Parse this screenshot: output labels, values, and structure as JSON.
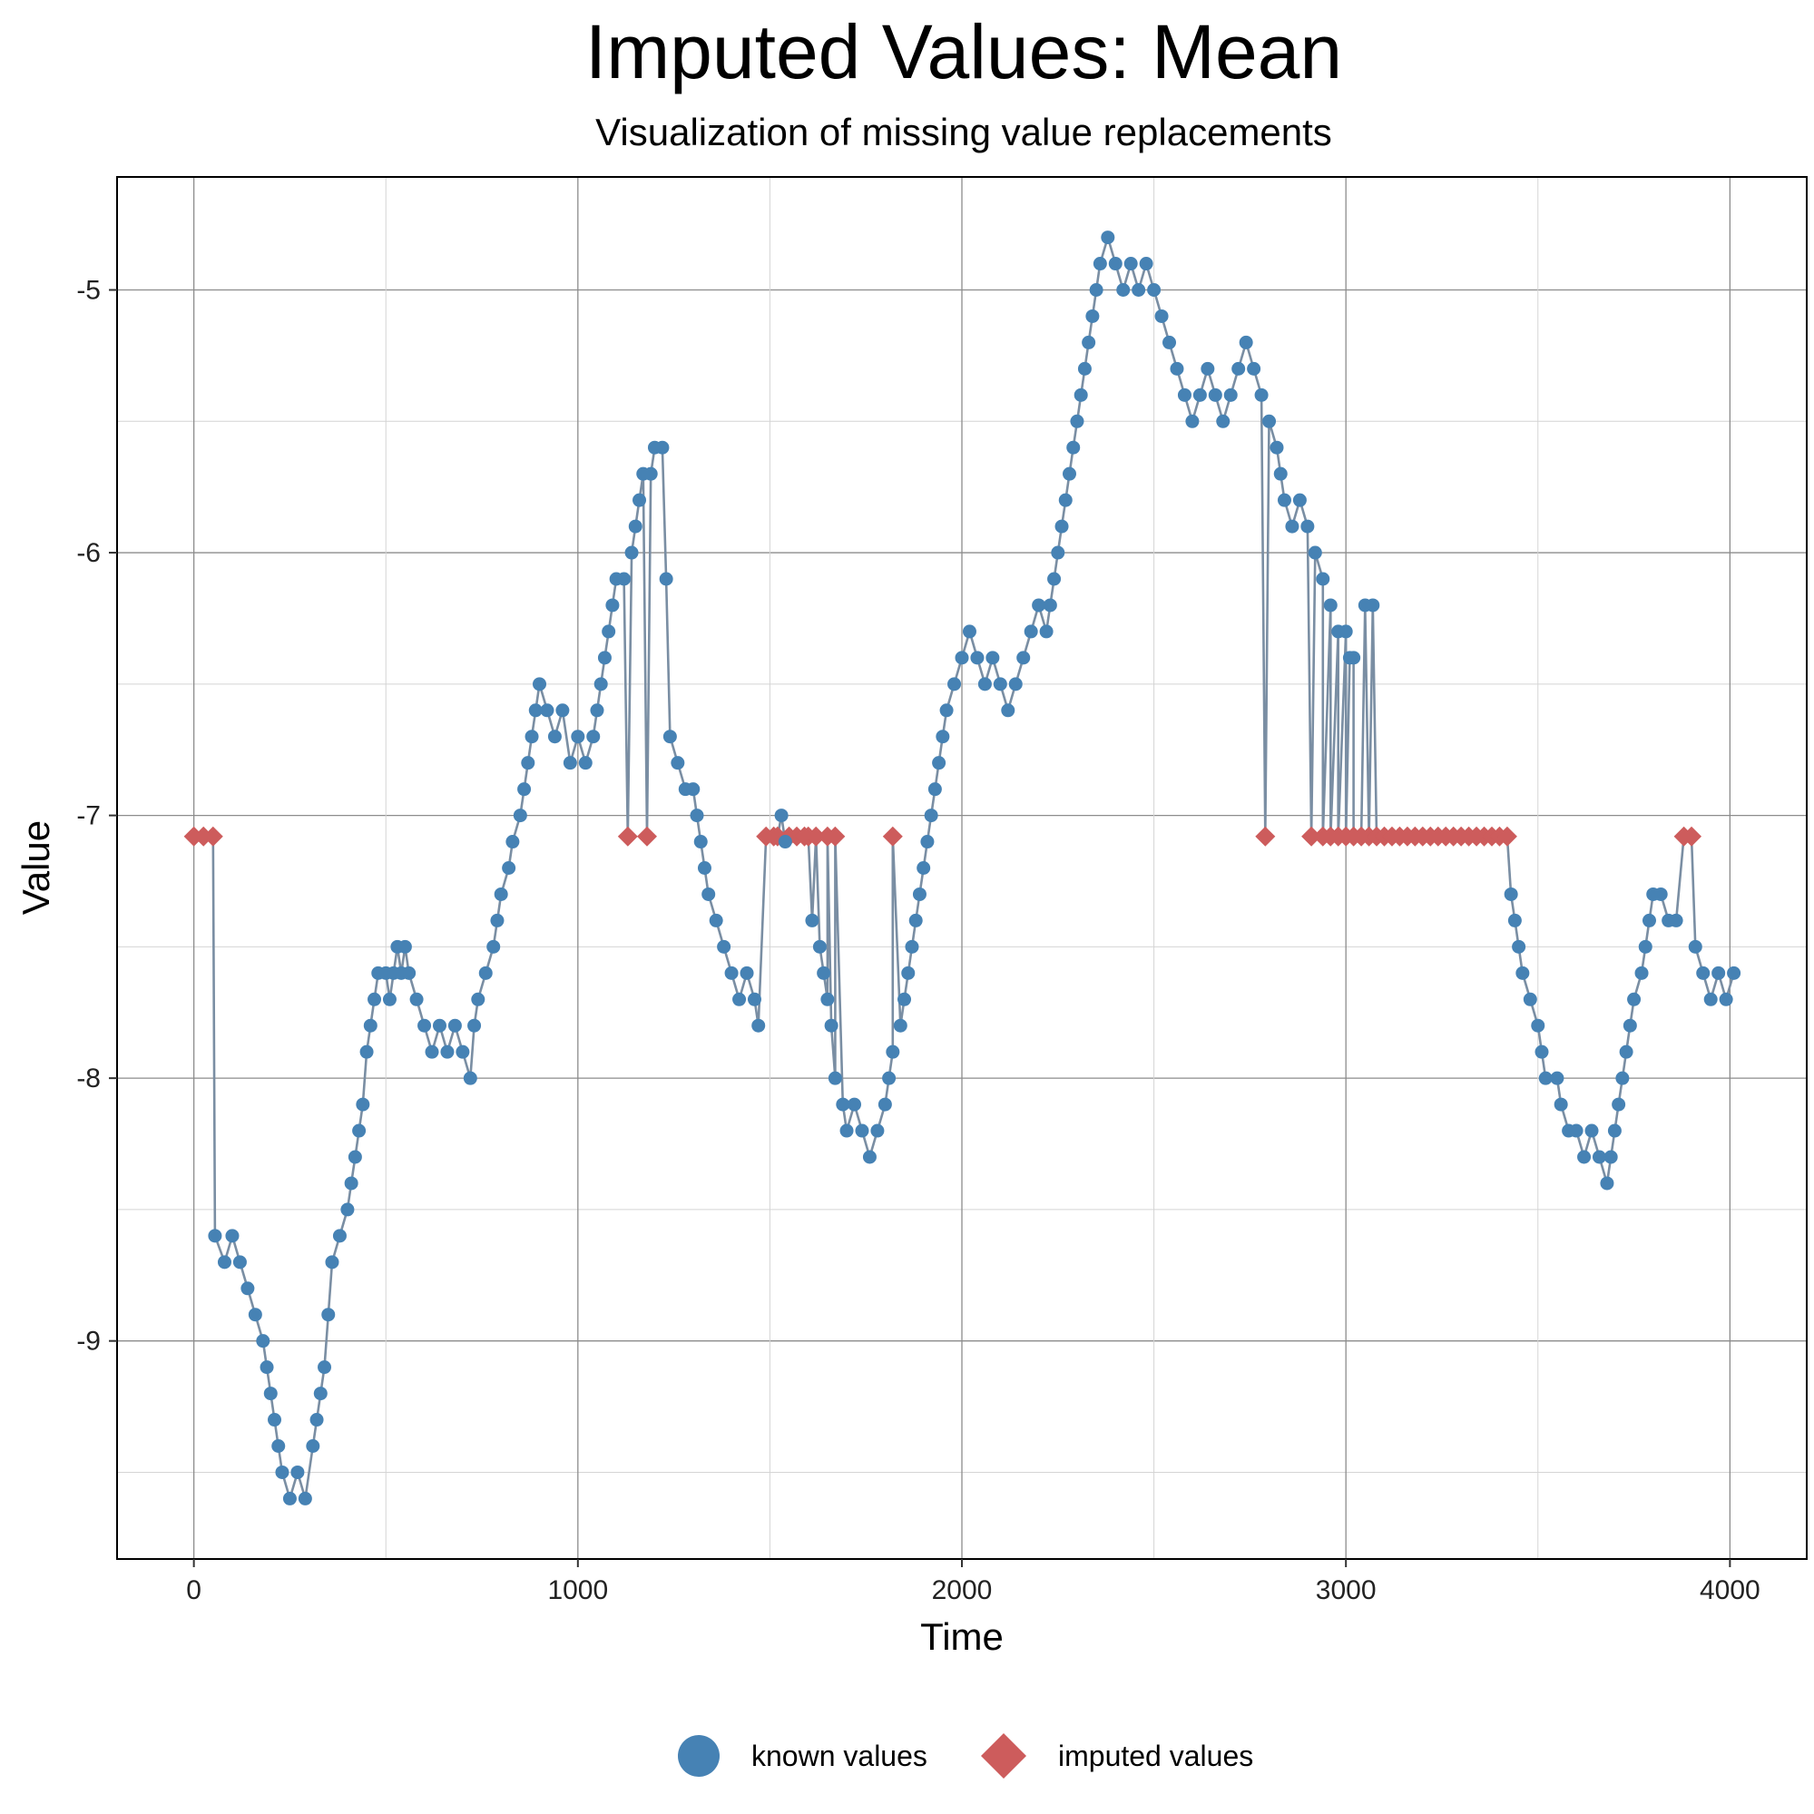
{
  "chart_data": {
    "type": "scatter",
    "title": "Imputed Values: Mean",
    "subtitle": "Visualization of missing value replacements",
    "xlabel": "Time",
    "ylabel": "Value",
    "xlim": [
      -200,
      4200
    ],
    "ylim": [
      -9.83,
      -4.57
    ],
    "x_ticks": [
      0,
      1000,
      2000,
      3000,
      4000
    ],
    "x_tick_labels": [
      "0",
      "1000",
      "2000",
      "3000",
      "4000"
    ],
    "y_ticks": [
      -9,
      -8,
      -7,
      -6,
      -5
    ],
    "y_tick_labels": [
      "-9",
      "-8",
      "-7",
      "-6",
      "-5"
    ],
    "grid": true,
    "legend_position": "bottom",
    "colors": {
      "known": "#4682b4",
      "imputed": "#cd5c5c",
      "line": "#7a8ea3"
    },
    "series": [
      {
        "name": "known values",
        "marker": "circle",
        "points": [
          [
            55,
            -8.6
          ],
          [
            80,
            -8.7
          ],
          [
            100,
            -8.6
          ],
          [
            120,
            -8.7
          ],
          [
            140,
            -8.8
          ],
          [
            160,
            -8.9
          ],
          [
            180,
            -9.0
          ],
          [
            190,
            -9.1
          ],
          [
            200,
            -9.2
          ],
          [
            210,
            -9.3
          ],
          [
            220,
            -9.4
          ],
          [
            230,
            -9.5
          ],
          [
            250,
            -9.6
          ],
          [
            270,
            -9.5
          ],
          [
            290,
            -9.6
          ],
          [
            310,
            -9.4
          ],
          [
            320,
            -9.3
          ],
          [
            330,
            -9.2
          ],
          [
            340,
            -9.1
          ],
          [
            350,
            -8.9
          ],
          [
            360,
            -8.7
          ],
          [
            380,
            -8.6
          ],
          [
            400,
            -8.5
          ],
          [
            410,
            -8.4
          ],
          [
            420,
            -8.3
          ],
          [
            430,
            -8.2
          ],
          [
            440,
            -8.1
          ],
          [
            450,
            -7.9
          ],
          [
            460,
            -7.8
          ],
          [
            470,
            -7.7
          ],
          [
            480,
            -7.6
          ],
          [
            500,
            -7.6
          ],
          [
            510,
            -7.7
          ],
          [
            520,
            -7.6
          ],
          [
            530,
            -7.5
          ],
          [
            540,
            -7.6
          ],
          [
            550,
            -7.5
          ],
          [
            560,
            -7.6
          ],
          [
            580,
            -7.7
          ],
          [
            600,
            -7.8
          ],
          [
            620,
            -7.9
          ],
          [
            640,
            -7.8
          ],
          [
            660,
            -7.9
          ],
          [
            680,
            -7.8
          ],
          [
            700,
            -7.9
          ],
          [
            720,
            -8.0
          ],
          [
            730,
            -7.8
          ],
          [
            740,
            -7.7
          ],
          [
            760,
            -7.6
          ],
          [
            780,
            -7.5
          ],
          [
            790,
            -7.4
          ],
          [
            800,
            -7.3
          ],
          [
            820,
            -7.2
          ],
          [
            830,
            -7.1
          ],
          [
            850,
            -7.0
          ],
          [
            860,
            -6.9
          ],
          [
            870,
            -6.8
          ],
          [
            880,
            -6.7
          ],
          [
            890,
            -6.6
          ],
          [
            900,
            -6.5
          ],
          [
            920,
            -6.6
          ],
          [
            940,
            -6.7
          ],
          [
            960,
            -6.6
          ],
          [
            980,
            -6.8
          ],
          [
            1000,
            -6.7
          ],
          [
            1020,
            -6.8
          ],
          [
            1040,
            -6.7
          ],
          [
            1050,
            -6.6
          ],
          [
            1060,
            -6.5
          ],
          [
            1070,
            -6.4
          ],
          [
            1080,
            -6.3
          ],
          [
            1090,
            -6.2
          ],
          [
            1100,
            -6.1
          ],
          [
            1120,
            -6.1
          ],
          [
            1140,
            -6.0
          ],
          [
            1150,
            -5.9
          ],
          [
            1160,
            -5.8
          ],
          [
            1170,
            -5.7
          ],
          [
            1190,
            -5.7
          ],
          [
            1200,
            -5.6
          ],
          [
            1220,
            -5.6
          ],
          [
            1230,
            -6.1
          ],
          [
            1240,
            -6.7
          ],
          [
            1260,
            -6.8
          ],
          [
            1280,
            -6.9
          ],
          [
            1300,
            -6.9
          ],
          [
            1310,
            -7.0
          ],
          [
            1320,
            -7.1
          ],
          [
            1330,
            -7.2
          ],
          [
            1340,
            -7.3
          ],
          [
            1360,
            -7.4
          ],
          [
            1380,
            -7.5
          ],
          [
            1400,
            -7.6
          ],
          [
            1420,
            -7.7
          ],
          [
            1440,
            -7.6
          ],
          [
            1460,
            -7.7
          ],
          [
            1470,
            -7.8
          ],
          [
            1530,
            -7.0
          ],
          [
            1540,
            -7.1
          ],
          [
            1610,
            -7.4
          ],
          [
            1630,
            -7.5
          ],
          [
            1640,
            -7.6
          ],
          [
            1650,
            -7.7
          ],
          [
            1660,
            -7.8
          ],
          [
            1670,
            -8.0
          ],
          [
            1690,
            -8.1
          ],
          [
            1700,
            -8.2
          ],
          [
            1720,
            -8.1
          ],
          [
            1740,
            -8.2
          ],
          [
            1760,
            -8.3
          ],
          [
            1780,
            -8.2
          ],
          [
            1800,
            -8.1
          ],
          [
            1810,
            -8.0
          ],
          [
            1820,
            -7.9
          ],
          [
            1840,
            -7.8
          ],
          [
            1850,
            -7.7
          ],
          [
            1860,
            -7.6
          ],
          [
            1870,
            -7.5
          ],
          [
            1880,
            -7.4
          ],
          [
            1890,
            -7.3
          ],
          [
            1900,
            -7.2
          ],
          [
            1910,
            -7.1
          ],
          [
            1920,
            -7.0
          ],
          [
            1930,
            -6.9
          ],
          [
            1940,
            -6.8
          ],
          [
            1950,
            -6.7
          ],
          [
            1960,
            -6.6
          ],
          [
            1980,
            -6.5
          ],
          [
            2000,
            -6.4
          ],
          [
            2020,
            -6.3
          ],
          [
            2040,
            -6.4
          ],
          [
            2060,
            -6.5
          ],
          [
            2080,
            -6.4
          ],
          [
            2100,
            -6.5
          ],
          [
            2120,
            -6.6
          ],
          [
            2140,
            -6.5
          ],
          [
            2160,
            -6.4
          ],
          [
            2180,
            -6.3
          ],
          [
            2200,
            -6.2
          ],
          [
            2220,
            -6.3
          ],
          [
            2230,
            -6.2
          ],
          [
            2240,
            -6.1
          ],
          [
            2250,
            -6.0
          ],
          [
            2260,
            -5.9
          ],
          [
            2270,
            -5.8
          ],
          [
            2280,
            -5.7
          ],
          [
            2290,
            -5.6
          ],
          [
            2300,
            -5.5
          ],
          [
            2310,
            -5.4
          ],
          [
            2320,
            -5.3
          ],
          [
            2330,
            -5.2
          ],
          [
            2340,
            -5.1
          ],
          [
            2350,
            -5.0
          ],
          [
            2360,
            -4.9
          ],
          [
            2380,
            -4.8
          ],
          [
            2400,
            -4.9
          ],
          [
            2420,
            -5.0
          ],
          [
            2440,
            -4.9
          ],
          [
            2460,
            -5.0
          ],
          [
            2480,
            -4.9
          ],
          [
            2500,
            -5.0
          ],
          [
            2520,
            -5.1
          ],
          [
            2540,
            -5.2
          ],
          [
            2560,
            -5.3
          ],
          [
            2580,
            -5.4
          ],
          [
            2600,
            -5.5
          ],
          [
            2620,
            -5.4
          ],
          [
            2640,
            -5.3
          ],
          [
            2660,
            -5.4
          ],
          [
            2680,
            -5.5
          ],
          [
            2700,
            -5.4
          ],
          [
            2720,
            -5.3
          ],
          [
            2740,
            -5.2
          ],
          [
            2760,
            -5.3
          ],
          [
            2780,
            -5.4
          ],
          [
            2800,
            -5.5
          ],
          [
            2820,
            -5.6
          ],
          [
            2830,
            -5.7
          ],
          [
            2840,
            -5.8
          ],
          [
            2860,
            -5.9
          ],
          [
            2880,
            -5.8
          ],
          [
            2900,
            -5.9
          ],
          [
            2920,
            -6.0
          ],
          [
            2940,
            -6.1
          ],
          [
            2960,
            -6.2
          ],
          [
            2980,
            -6.3
          ],
          [
            3000,
            -6.3
          ],
          [
            3010,
            -6.4
          ],
          [
            3020,
            -6.4
          ],
          [
            3050,
            -6.2
          ],
          [
            3070,
            -6.2
          ],
          [
            3430,
            -7.3
          ],
          [
            3440,
            -7.4
          ],
          [
            3450,
            -7.5
          ],
          [
            3460,
            -7.6
          ],
          [
            3480,
            -7.7
          ],
          [
            3500,
            -7.8
          ],
          [
            3510,
            -7.9
          ],
          [
            3520,
            -8.0
          ],
          [
            3550,
            -8.0
          ],
          [
            3560,
            -8.1
          ],
          [
            3580,
            -8.2
          ],
          [
            3600,
            -8.2
          ],
          [
            3620,
            -8.3
          ],
          [
            3640,
            -8.2
          ],
          [
            3660,
            -8.3
          ],
          [
            3680,
            -8.4
          ],
          [
            3690,
            -8.3
          ],
          [
            3700,
            -8.2
          ],
          [
            3710,
            -8.1
          ],
          [
            3720,
            -8.0
          ],
          [
            3730,
            -7.9
          ],
          [
            3740,
            -7.8
          ],
          [
            3750,
            -7.7
          ],
          [
            3770,
            -7.6
          ],
          [
            3780,
            -7.5
          ],
          [
            3790,
            -7.4
          ],
          [
            3800,
            -7.3
          ],
          [
            3820,
            -7.3
          ],
          [
            3840,
            -7.4
          ],
          [
            3860,
            -7.4
          ],
          [
            3910,
            -7.5
          ],
          [
            3930,
            -7.6
          ],
          [
            3950,
            -7.7
          ],
          [
            3970,
            -7.6
          ],
          [
            3990,
            -7.7
          ],
          [
            4010,
            -7.6
          ]
        ]
      },
      {
        "name": "imputed values",
        "marker": "diamond",
        "points": [
          [
            0,
            -7.08
          ],
          [
            25,
            -7.08
          ],
          [
            50,
            -7.08
          ],
          [
            1130,
            -7.08
          ],
          [
            1180,
            -7.08
          ],
          [
            1490,
            -7.08
          ],
          [
            1510,
            -7.08
          ],
          [
            1520,
            -7.08
          ],
          [
            1550,
            -7.08
          ],
          [
            1570,
            -7.08
          ],
          [
            1590,
            -7.08
          ],
          [
            1600,
            -7.08
          ],
          [
            1620,
            -7.08
          ],
          [
            1650,
            -7.08
          ],
          [
            1670,
            -7.08
          ],
          [
            1820,
            -7.08
          ],
          [
            2790,
            -7.08
          ],
          [
            2910,
            -7.08
          ],
          [
            2940,
            -7.08
          ],
          [
            2960,
            -7.08
          ],
          [
            2980,
            -7.08
          ],
          [
            3000,
            -7.08
          ],
          [
            3020,
            -7.08
          ],
          [
            3040,
            -7.08
          ],
          [
            3060,
            -7.08
          ],
          [
            3080,
            -7.08
          ],
          [
            3100,
            -7.08
          ],
          [
            3120,
            -7.08
          ],
          [
            3140,
            -7.08
          ],
          [
            3160,
            -7.08
          ],
          [
            3180,
            -7.08
          ],
          [
            3200,
            -7.08
          ],
          [
            3220,
            -7.08
          ],
          [
            3240,
            -7.08
          ],
          [
            3260,
            -7.08
          ],
          [
            3280,
            -7.08
          ],
          [
            3300,
            -7.08
          ],
          [
            3320,
            -7.08
          ],
          [
            3340,
            -7.08
          ],
          [
            3360,
            -7.08
          ],
          [
            3380,
            -7.08
          ],
          [
            3400,
            -7.08
          ],
          [
            3420,
            -7.08
          ],
          [
            3880,
            -7.08
          ],
          [
            3900,
            -7.08
          ]
        ]
      }
    ]
  },
  "legend": {
    "known_label": "known values",
    "imputed_label": "imputed values"
  }
}
